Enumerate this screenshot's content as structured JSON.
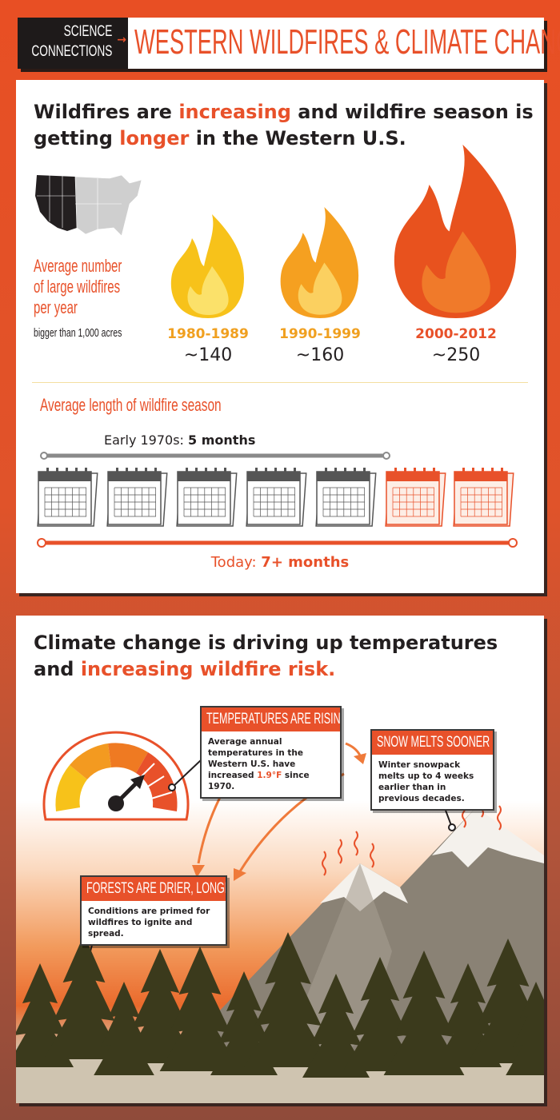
{
  "header": {
    "series": [
      "SCIENCE",
      "CONNECTIONS"
    ],
    "title": "WESTERN WILDFIRES & CLIMATE CHANGE"
  },
  "colors": {
    "accent": "#e8512a",
    "flame_yellow": "#f7c21a",
    "flame_orange": "#f39020",
    "flame_red": "#e04a1e",
    "dark": "#231f20"
  },
  "section1": {
    "heading": {
      "part1": "Wildfires are ",
      "hl1": "increasing",
      "part2": " and wildfire season is",
      "part3": "getting ",
      "hl2": "longer",
      "part4": " in the Western U.S."
    },
    "fires_label": {
      "lines": [
        "Average number",
        "of large wildfires",
        "per year"
      ],
      "sub": "bigger than 1,000 acres"
    },
    "periods": [
      {
        "years": "1980-1989",
        "count": "~140",
        "value": 140
      },
      {
        "years": "1990-1999",
        "count": "~160",
        "value": 160
      },
      {
        "years": "2000-2012",
        "count": "~250",
        "value": 250
      }
    ],
    "season": {
      "title": "Average length of wildfire season",
      "early_label": "Early 1970s: ",
      "early_value": "5 months",
      "early_months": 5,
      "today_label": "Today: ",
      "today_value": "7+ months",
      "today_months": 7
    }
  },
  "section2": {
    "heading": {
      "line1": "Climate change is driving up temperatures",
      "part2": "and ",
      "hl": "increasing wildfire risk."
    },
    "temps": {
      "title": "TEMPERATURES ARE RISING",
      "text1": "Average annual temperatures in the Western U.S. have increased ",
      "hl": "1.9°F",
      "text2": " since 1970."
    },
    "snow": {
      "title": "SNOW MELTS SOONER",
      "text": "Winter snowpack melts up to 4 weeks earlier than in previous decades."
    },
    "forests": {
      "title": "FORESTS ARE DRIER, LONGER",
      "text": "Conditions are primed for wildfires to ignite and spread."
    }
  }
}
